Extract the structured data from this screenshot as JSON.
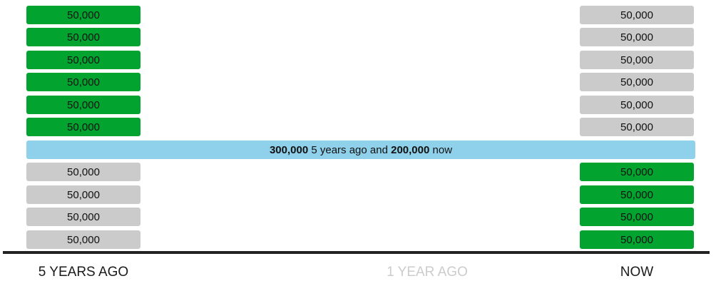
{
  "left_column": {
    "blocks": [
      {
        "label": "50,000",
        "color": "#02a42f"
      },
      {
        "label": "50,000",
        "color": "#02a42f"
      },
      {
        "label": "50,000",
        "color": "#02a42f"
      },
      {
        "label": "50,000",
        "color": "#02a42f"
      },
      {
        "label": "50,000",
        "color": "#02a42f"
      },
      {
        "label": "50,000",
        "color": "#02a42f"
      },
      {
        "label": "50,000",
        "color": "#cbcbcb"
      },
      {
        "label": "50,000",
        "color": "#cbcbcb"
      },
      {
        "label": "50,000",
        "color": "#cbcbcb"
      },
      {
        "label": "50,000",
        "color": "#cbcbcb"
      }
    ]
  },
  "right_column": {
    "blocks": [
      {
        "label": "50,000",
        "color": "#cbcbcb"
      },
      {
        "label": "50,000",
        "color": "#cbcbcb"
      },
      {
        "label": "50,000",
        "color": "#cbcbcb"
      },
      {
        "label": "50,000",
        "color": "#cbcbcb"
      },
      {
        "label": "50,000",
        "color": "#cbcbcb"
      },
      {
        "label": "50,000",
        "color": "#cbcbcb"
      },
      {
        "label": "50,000",
        "color": "#02a42f"
      },
      {
        "label": "50,000",
        "color": "#02a42f"
      },
      {
        "label": "50,000",
        "color": "#02a42f"
      },
      {
        "label": "50,000",
        "color": "#02a42f"
      }
    ]
  },
  "summary_band": {
    "value_then": "300,000",
    "text_then": " 5 years ago and ",
    "value_now": "200,000",
    "text_now": " now",
    "color": "#8fd1ea"
  },
  "axis": {
    "labels": {
      "five_years_ago": "5 YEARS AGO",
      "one_year_ago": "1 YEAR AGO",
      "now": "NOW"
    },
    "inactive_label_color": "#cccccc"
  }
}
